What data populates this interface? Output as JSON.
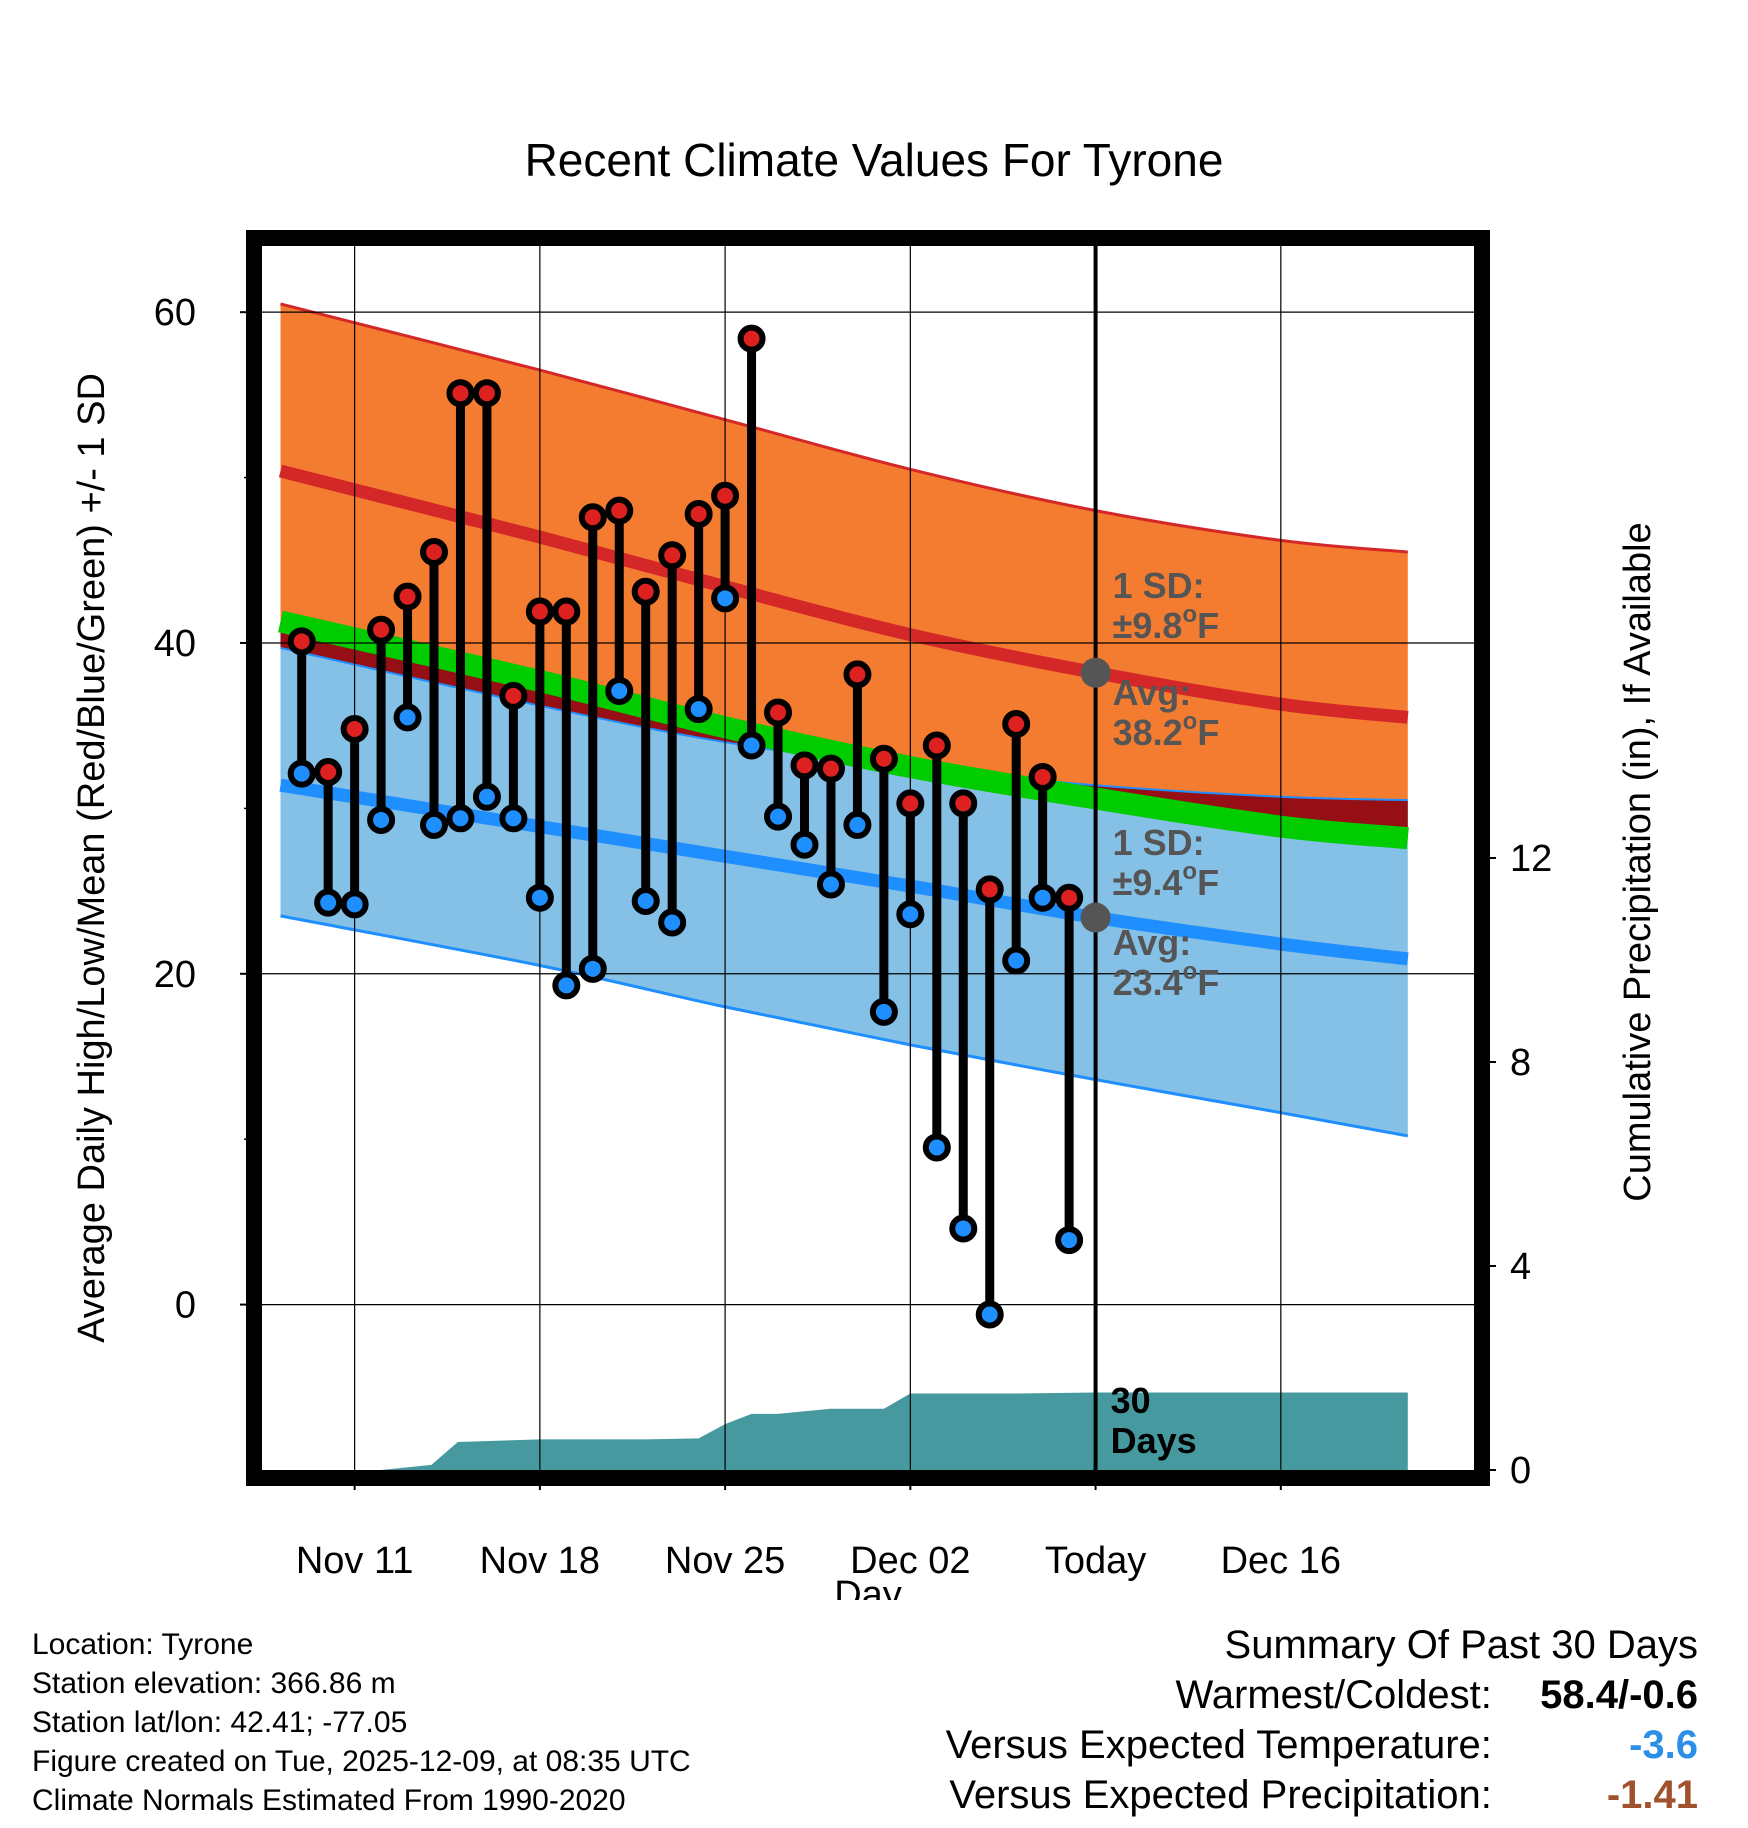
{
  "chart_data": {
    "type": "line",
    "title": "Recent Climate Values For Tyrone",
    "xlabel": "Day",
    "ylabel": "Average Daily High/Low/Mean (Red/Blue/Green) +/- 1 SD",
    "y2label": "Cumulative Precipitation (in), If Available",
    "ylim": [
      -10,
      64
    ],
    "y2lim": [
      0,
      24
    ],
    "xlim": [
      -3.5,
      42.3
    ],
    "x_ticks": [
      {
        "x": 0,
        "label": "Nov 11"
      },
      {
        "x": 7,
        "label": "Nov 18"
      },
      {
        "x": 14,
        "label": "Nov 25"
      },
      {
        "x": 21,
        "label": "Dec 02"
      },
      {
        "x": 28,
        "label": "Today"
      },
      {
        "x": 35,
        "label": "Dec 16"
      }
    ],
    "y_ticks": [
      0,
      20,
      40,
      60
    ],
    "y2_ticks": [
      0,
      4,
      8,
      12
    ],
    "today_x": 28,
    "today_marker_label": "30\nDays",
    "normals": {
      "x": [
        -2.8,
        7,
        14,
        21,
        28,
        35,
        39.8
      ],
      "high_upper": [
        60.5,
        56.5,
        53.5,
        50.5,
        48.0,
        46.2,
        45.5
      ],
      "high_mean": [
        50.4,
        46.4,
        43.4,
        40.5,
        38.2,
        36.3,
        35.5
      ],
      "mean": [
        41.3,
        37.7,
        34.9,
        32.5,
        30.6,
        28.9,
        28.2
      ],
      "low_upper": [
        39.7,
        36.2,
        34.0,
        32.5,
        31.4,
        30.7,
        30.5
      ],
      "low_mean": [
        31.4,
        28.9,
        27.1,
        25.3,
        23.4,
        21.8,
        20.9
      ],
      "low_lower": [
        23.5,
        20.5,
        18.0,
        15.7,
        13.6,
        11.6,
        10.2
      ]
    },
    "series": [
      {
        "name": "High",
        "color": "#dd2020",
        "x": [
          -2,
          -1,
          0,
          1,
          2,
          3,
          4,
          5,
          6,
          7,
          8,
          9,
          10,
          11,
          12,
          13,
          14,
          15,
          16,
          17,
          18,
          19,
          20,
          21,
          22,
          23,
          24,
          25,
          26,
          27
        ],
        "values": [
          40.1,
          32.2,
          34.8,
          40.8,
          42.8,
          45.5,
          55.1,
          55.1,
          36.8,
          41.9,
          41.9,
          47.6,
          48.0,
          43.1,
          45.3,
          47.8,
          48.9,
          58.4,
          35.8,
          32.6,
          32.4,
          38.1,
          33.0,
          30.3,
          33.8,
          30.3,
          25.1,
          35.1,
          31.9,
          24.6
        ]
      },
      {
        "name": "Low",
        "color": "#1f8fff",
        "x": [
          -2,
          -1,
          0,
          1,
          2,
          3,
          4,
          5,
          6,
          7,
          8,
          9,
          10,
          11,
          12,
          13,
          14,
          15,
          16,
          17,
          18,
          19,
          20,
          21,
          22,
          23,
          24,
          25,
          26,
          27
        ],
        "values": [
          32.1,
          24.3,
          24.2,
          29.3,
          35.5,
          29.0,
          29.4,
          30.7,
          29.4,
          24.6,
          19.3,
          20.3,
          37.1,
          24.4,
          23.1,
          36.0,
          42.7,
          33.8,
          29.5,
          27.8,
          25.4,
          29.0,
          17.7,
          23.6,
          9.5,
          4.6,
          -0.6,
          20.8,
          24.6,
          3.9
        ]
      },
      {
        "name": "Cumulative Precipitation (in)",
        "x": [
          -2.8,
          1,
          2.9,
          3.9,
          7,
          11,
          13,
          14,
          15,
          16,
          17,
          18,
          20,
          21,
          22,
          25,
          28,
          30,
          35,
          39.8
        ],
        "values": [
          0,
          0,
          0.1,
          0.55,
          0.6,
          0.6,
          0.62,
          0.9,
          1.1,
          1.1,
          1.15,
          1.2,
          1.2,
          1.5,
          1.5,
          1.5,
          1.52,
          1.52,
          1.52,
          1.52
        ]
      }
    ],
    "annotations": {
      "high_sd": "1 SD:\n±9.8°F",
      "high_avg": "Avg:\n38.2°F",
      "low_sd": "1 SD:\n±9.4°F",
      "low_avg": "Avg:\n23.4°F",
      "high_avg_value": 38.2,
      "low_avg_value": 23.4
    },
    "colors": {
      "high_band": "#f47c30",
      "high_line": "#d42828",
      "overlap": "#960f14",
      "mean_band": "#00cc00",
      "low_band": "#85c0e6",
      "low_line": "#1f8fff",
      "precip": "#45999f",
      "annotation": "#555555"
    }
  },
  "footer": {
    "location": "Location: Tyrone",
    "elevation": "Station elevation: 366.86 m",
    "latlon": "Station lat/lon: 42.41; -77.05",
    "created": "Figure created on Tue, 2025-12-09, at 08:35 UTC",
    "normals": "Climate Normals Estimated From 1990-2020"
  },
  "summary": {
    "title": "Summary Of Past 30 Days",
    "warmest_label": "Warmest/Coldest:",
    "warmest_value": "58.4/-0.6",
    "temp_label": "Versus Expected Temperature:",
    "temp_value": "-3.6",
    "temp_color": "#2b8fe8",
    "precip_label": "Versus Expected Precipitation:",
    "precip_value": "-1.41",
    "precip_color": "#a0522d"
  }
}
